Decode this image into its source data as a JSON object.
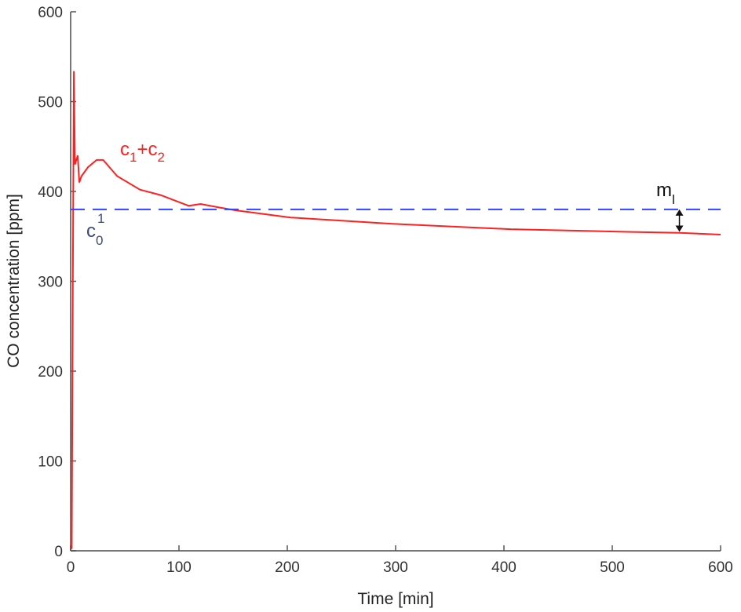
{
  "chart_data": {
    "type": "line",
    "title": "",
    "xlabel": "Time [min]",
    "ylabel": "CO concentration [ppm]",
    "xlim": [
      0,
      600
    ],
    "ylim": [
      0,
      600
    ],
    "xticks": [
      0,
      100,
      200,
      300,
      400,
      500,
      600
    ],
    "yticks": [
      0,
      100,
      200,
      300,
      400,
      500,
      600
    ],
    "grid": false,
    "series": [
      {
        "name": "c1+c2",
        "color": "#ff2020",
        "x": [
          1,
          2,
          3,
          4,
          6.5,
          8,
          10,
          16,
          24,
          30,
          43,
          64,
          83,
          109,
          120,
          138,
          152,
          203,
          297,
          406,
          514,
          562,
          600
        ],
        "y": [
          2,
          300,
          534,
          430,
          440,
          410,
          417,
          427,
          435,
          435,
          417,
          402,
          396,
          384,
          386,
          382,
          379,
          371,
          364,
          358,
          355,
          354,
          352
        ]
      },
      {
        "name": "c0^1",
        "color": "#3344ff",
        "style": "dashed",
        "x": [
          0,
          600
        ],
        "y": [
          380,
          380
        ]
      }
    ],
    "annotations": [
      {
        "text": "c",
        "sub": "1",
        "text2": "+c",
        "sub2": "2",
        "color": "#ff2020",
        "x": 45,
        "y": 430
      },
      {
        "text": "c",
        "sub": "0",
        "sup": "1",
        "color": "#3a4a7a",
        "x": 18,
        "y": 350
      },
      {
        "text": "m",
        "sub": "l",
        "color": "#111111",
        "x": 545,
        "y": 390,
        "arrow_from": 380,
        "arrow_to": 355,
        "arrow_x": 562
      }
    ]
  }
}
